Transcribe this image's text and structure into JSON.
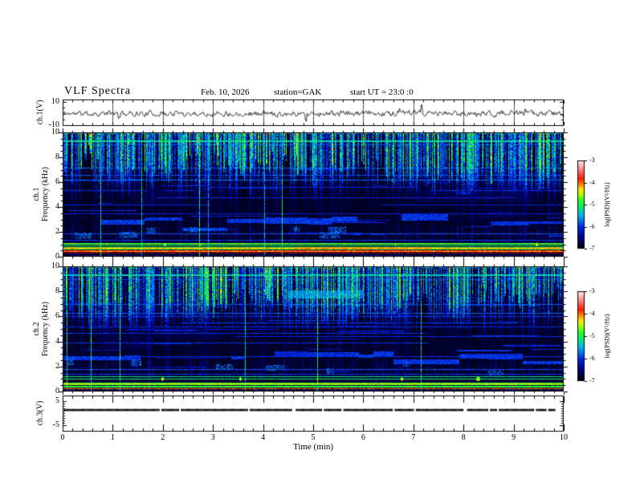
{
  "header": {
    "title": "VLF Spectra",
    "date": "Feb. 10, 2026",
    "station": "station=GAK",
    "start_ut": "start UT =  23:0  :0"
  },
  "xaxis": {
    "label": "Time  (min)",
    "ticks": [
      0,
      1,
      2,
      3,
      4,
      5,
      6,
      7,
      8,
      9,
      10
    ],
    "minor_per_major": 5,
    "range_min": [
      0,
      10
    ]
  },
  "colormap": {
    "stops": [
      [
        0,
        "#000000"
      ],
      [
        0.13,
        "#000080"
      ],
      [
        0.25,
        "#0028e6"
      ],
      [
        0.38,
        "#00b4f0"
      ],
      [
        0.47,
        "#00eb78"
      ],
      [
        0.55,
        "#28ff28"
      ],
      [
        0.62,
        "#b4ff00"
      ],
      [
        0.68,
        "#ffe600"
      ],
      [
        0.74,
        "#ff7800"
      ],
      [
        0.8,
        "#ff1e00"
      ],
      [
        0.88,
        "#ff6e6e"
      ],
      [
        1,
        "#ffebeb"
      ]
    ]
  },
  "chart_data": [
    {
      "type": "line",
      "name": "ch1-waveform",
      "ylabel": "ch.1(V)",
      "ylim": [
        -10,
        10
      ],
      "yticks": [
        10,
        -10
      ],
      "x_range_min": [
        0,
        10
      ],
      "description": "broadband noise trace, mean 0 V, typical amplitude ±2 V, sporadic spikes to ±8 V",
      "spikes_min": [
        4.85,
        7.15
      ],
      "seed": 11
    },
    {
      "type": "heatmap",
      "name": "ch1-spectrogram",
      "ylabel_channel": "ch.1",
      "ylabel_axis": "Frequency (kHz)",
      "ylim_khz": [
        0,
        10
      ],
      "yticks": [
        10,
        8,
        6,
        4,
        2,
        0
      ],
      "x_range_min": [
        0,
        10
      ],
      "seed": 101,
      "colorbar": {
        "label": "log(PSD)(V²/Hz)",
        "ticks": [
          -3,
          -4,
          -5,
          -6,
          -7
        ],
        "range": [
          -7,
          -3
        ]
      },
      "features": {
        "background": "dense vertical broadband sferic streaks over dark noise floor",
        "streak_count": 680,
        "top_edge_band_khz": [
          9.85,
          10
        ],
        "lines": [
          {
            "f_khz": 9.32,
            "log_psd": -5.3,
            "th_khz": 0.14
          },
          {
            "f_khz": 9.02,
            "log_psd": -5.9,
            "th_khz": 0.07
          },
          {
            "f_khz": 7.15,
            "log_psd": -5.8,
            "th_khz": 0.07
          },
          {
            "f_khz": 6.55,
            "log_psd": -5.9,
            "th_khz": 0.07
          },
          {
            "f_khz": 6.18,
            "log_psd": -5.75,
            "th_khz": 0.07
          },
          {
            "f_khz": 5.6,
            "log_psd": -6.05,
            "th_khz": 0.07,
            "partial": true
          },
          {
            "f_khz": 5.35,
            "log_psd": -6.0,
            "th_khz": 0.07,
            "partial": true
          },
          {
            "f_khz": 4.75,
            "log_psd": -6.05,
            "th_khz": 0.07,
            "partial": true
          },
          {
            "f_khz": 4.2,
            "log_psd": -6.1,
            "th_khz": 0.07,
            "partial": true
          },
          {
            "f_khz": 3.5,
            "log_psd": -6.1,
            "th_khz": 0.07,
            "partial": true
          },
          {
            "f_khz": 1.9,
            "log_psd": -5.85,
            "th_khz": 0.07
          },
          {
            "f_khz": 1.35,
            "log_psd": -5.95,
            "th_khz": 0.07,
            "partial": true
          }
        ],
        "blue_band": {
          "f_lo_khz": 2.2,
          "f_hi_khz": 3.2,
          "log_psd": -5.95
        },
        "speckle_blocks_khz": [
          1.5,
          2.5
        ],
        "bars": [],
        "hum_bands": [
          {
            "f_khz": 1.05,
            "log_psd": -4.8,
            "th_khz": 0.12
          },
          {
            "f_khz": 0.88,
            "log_psd": -4.95,
            "th_khz": 0.06
          },
          {
            "f_khz": 0.7,
            "log_psd": -4.2,
            "th_khz": 0.18,
            "bright_window_min": [
              4.6,
              7.3
            ]
          },
          {
            "f_khz": 0.48,
            "log_psd": -3.95,
            "th_khz": 0.1
          },
          {
            "f_khz": 0.33,
            "dark_red": true,
            "log_psd": -4.0,
            "th_khz": 0.12
          }
        ]
      }
    },
    {
      "type": "heatmap",
      "name": "ch2-spectrogram",
      "ylabel_channel": "ch.2",
      "ylabel_axis": "Frequency (kHz)",
      "ylim_khz": [
        0,
        10
      ],
      "yticks": [
        10,
        8,
        6,
        4,
        2,
        0
      ],
      "x_range_min": [
        0,
        10
      ],
      "seed": 202,
      "colorbar": {
        "label": "log(PSD)(V²/Hz)",
        "ticks": [
          -3,
          -4,
          -5,
          -6,
          -7
        ],
        "range": [
          -7,
          -3
        ]
      },
      "features": {
        "background": "dense vertical broadband sferic streaks over dark noise floor",
        "streak_count": 680,
        "top_edge_band_khz": [
          9.85,
          10
        ],
        "lines": [
          {
            "f_khz": 9.32,
            "log_psd": -5.35,
            "th_khz": 0.14
          },
          {
            "f_khz": 9.0,
            "log_psd": -5.9,
            "th_khz": 0.07
          },
          {
            "f_khz": 7.0,
            "log_psd": -5.85,
            "th_khz": 0.07
          },
          {
            "f_khz": 6.3,
            "log_psd": -5.8,
            "th_khz": 0.07
          },
          {
            "f_khz": 6.0,
            "log_psd": -6.0,
            "th_khz": 0.07,
            "partial": true
          },
          {
            "f_khz": 5.5,
            "log_psd": -5.95,
            "th_khz": 0.07,
            "partial": true
          },
          {
            "f_khz": 5.2,
            "log_psd": -6.05,
            "th_khz": 0.07,
            "partial": true
          },
          {
            "f_khz": 4.7,
            "log_psd": -6.0,
            "th_khz": 0.07,
            "partial": true
          },
          {
            "f_khz": 4.4,
            "log_psd": -6.05,
            "th_khz": 0.07,
            "partial": true
          },
          {
            "f_khz": 3.9,
            "log_psd": -6.0,
            "th_khz": 0.07,
            "partial": true
          },
          {
            "f_khz": 2.8,
            "log_psd": -6.0,
            "th_khz": 0.07,
            "partial": true
          },
          {
            "f_khz": 1.8,
            "log_psd": -5.85,
            "th_khz": 0.07
          },
          {
            "f_khz": 1.4,
            "log_psd": -5.95,
            "th_khz": 0.07,
            "partial": true
          }
        ],
        "blue_band": {
          "f_lo_khz": 2.1,
          "f_hi_khz": 3.1,
          "log_psd": -5.95
        },
        "speckle_blocks_khz": [
          1.5,
          2.5
        ],
        "bars": [
          {
            "x_min": [
              4.5,
              6.0
            ],
            "f_khz": 7.8,
            "th_khz": 0.3,
            "log_psd": -5.6
          }
        ],
        "hum_bands": [
          {
            "f_khz": 1.25,
            "log_psd": -5.1,
            "th_khz": 0.06
          },
          {
            "f_khz": 1.0,
            "log_psd": -4.9,
            "th_khz": 0.07
          },
          {
            "f_khz": 0.66,
            "log_psd": -4.35,
            "th_khz": 0.2
          },
          {
            "f_khz": 0.48,
            "log_psd": -4.8,
            "th_khz": 0.07
          },
          {
            "f_khz": 0.38,
            "log_psd": -4.85,
            "th_khz": 0.06
          },
          {
            "f_khz": 0.25,
            "log_psd": -3.95,
            "th_khz": 0.08
          }
        ]
      }
    },
    {
      "type": "line",
      "name": "ch3-waveform",
      "ylabel": "ch.3(V)",
      "ylim": [
        -7,
        7
      ],
      "yticks": [
        5,
        -5
      ],
      "x_range_min": [
        0,
        10
      ],
      "value_v": 0,
      "trace_end_min": 9.83,
      "description": "flat heavy dashed trace at 0 V ending near 9.83 min",
      "seed": 13
    }
  ]
}
